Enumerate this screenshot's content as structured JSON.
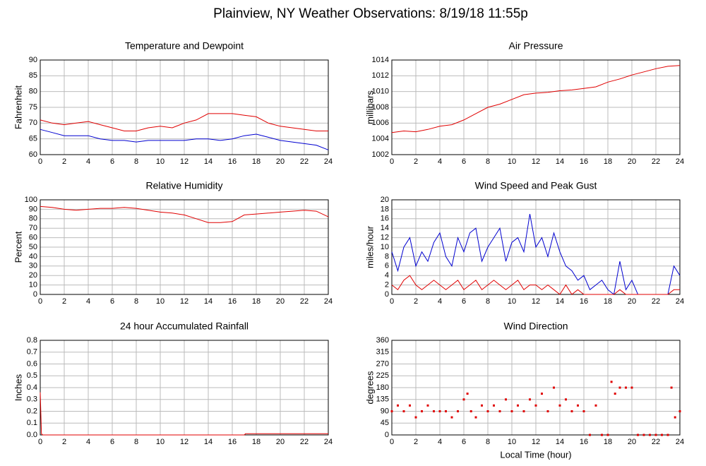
{
  "title": "Plainview, NY Weather Observations: 8/19/18 11:55p",
  "chart_data": [
    {
      "type": "line",
      "title": "Temperature and Dewpoint",
      "ylabel": "Fahrenheit",
      "x": [
        0,
        1,
        2,
        3,
        4,
        5,
        6,
        7,
        8,
        9,
        10,
        11,
        12,
        13,
        14,
        15,
        16,
        17,
        18,
        19,
        20,
        21,
        22,
        23,
        24
      ],
      "series": [
        {
          "color": "#e00000",
          "values": [
            71,
            70,
            69.5,
            70,
            70.5,
            69.5,
            68.5,
            67.5,
            67.5,
            68.5,
            69,
            68.5,
            70,
            71,
            73,
            73,
            73,
            72.5,
            72,
            70,
            69,
            68.5,
            68,
            67.5,
            67.5
          ]
        },
        {
          "color": "#0000d0",
          "values": [
            68,
            67,
            66,
            66,
            66,
            65,
            64.5,
            64.5,
            64,
            64.5,
            64.5,
            64.5,
            64.5,
            65,
            65,
            64.5,
            65,
            66,
            66.5,
            65.5,
            64.5,
            64,
            63.5,
            63,
            61.5
          ]
        }
      ],
      "xlim": [
        0,
        24
      ],
      "xticks": [
        0,
        2,
        4,
        6,
        8,
        10,
        12,
        14,
        16,
        18,
        20,
        22,
        24
      ],
      "ylim": [
        60,
        90
      ],
      "yticks": [
        60,
        65,
        70,
        75,
        80,
        85,
        90
      ],
      "grid": true
    },
    {
      "type": "line",
      "title": "Air Pressure",
      "ylabel": "millibars",
      "x": [
        0,
        1,
        2,
        3,
        4,
        5,
        6,
        7,
        8,
        9,
        10,
        11,
        12,
        13,
        14,
        15,
        16,
        17,
        18,
        19,
        20,
        21,
        22,
        23,
        24
      ],
      "series": [
        {
          "color": "#e00000",
          "values": [
            1004.8,
            1005,
            1004.9,
            1005.2,
            1005.6,
            1005.8,
            1006.4,
            1007.2,
            1008,
            1008.4,
            1009,
            1009.6,
            1009.8,
            1009.9,
            1010.1,
            1010.2,
            1010.4,
            1010.6,
            1011.2,
            1011.6,
            1012.1,
            1012.5,
            1012.9,
            1013.2,
            1013.3
          ]
        }
      ],
      "xlim": [
        0,
        24
      ],
      "xticks": [
        0,
        2,
        4,
        6,
        8,
        10,
        12,
        14,
        16,
        18,
        20,
        22,
        24
      ],
      "ylim": [
        1002,
        1014
      ],
      "yticks": [
        1002,
        1004,
        1006,
        1008,
        1010,
        1012,
        1014
      ],
      "grid": true
    },
    {
      "type": "line",
      "title": "Relative Humidity",
      "ylabel": "Percent",
      "x": [
        0,
        1,
        2,
        3,
        4,
        5,
        6,
        7,
        8,
        9,
        10,
        11,
        12,
        13,
        14,
        15,
        16,
        17,
        18,
        19,
        20,
        21,
        22,
        23,
        24
      ],
      "series": [
        {
          "color": "#e00000",
          "values": [
            93,
            92,
            90,
            89,
            90,
            91,
            91,
            92,
            91,
            89,
            87,
            86,
            84,
            80,
            76,
            76,
            77,
            84,
            85,
            86,
            87,
            88,
            89,
            88,
            82
          ]
        }
      ],
      "xlim": [
        0,
        24
      ],
      "xticks": [
        0,
        2,
        4,
        6,
        8,
        10,
        12,
        14,
        16,
        18,
        20,
        22,
        24
      ],
      "ylim": [
        0,
        100
      ],
      "yticks": [
        0,
        10,
        20,
        30,
        40,
        50,
        60,
        70,
        80,
        90,
        100
      ],
      "grid": true
    },
    {
      "type": "line",
      "title": "Wind Speed and Peak Gust",
      "ylabel": "miles/hour",
      "x": [
        0,
        0.5,
        1,
        1.5,
        2,
        2.5,
        3,
        3.5,
        4,
        4.5,
        5,
        5.5,
        6,
        6.5,
        7,
        7.5,
        8,
        8.5,
        9,
        9.5,
        10,
        10.5,
        11,
        11.5,
        12,
        12.5,
        13,
        13.5,
        14,
        14.5,
        15,
        15.5,
        16,
        16.5,
        17,
        17.5,
        18,
        18.5,
        19,
        19.5,
        20,
        20.5,
        21,
        21.5,
        22,
        22.5,
        23,
        23.5,
        24
      ],
      "series": [
        {
          "color": "#0000d0",
          "values": [
            9,
            5,
            10,
            12,
            6,
            9,
            7,
            11,
            13,
            8,
            6,
            12,
            9,
            13,
            14,
            7,
            10,
            12,
            14,
            7,
            11,
            12,
            9,
            17,
            10,
            12,
            8,
            13,
            9,
            6,
            5,
            3,
            4,
            1,
            2,
            3,
            1,
            0,
            7,
            1,
            3,
            0,
            0,
            0,
            0,
            0,
            0,
            6,
            4
          ]
        },
        {
          "color": "#e00000",
          "values": [
            2,
            1,
            3,
            4,
            2,
            1,
            2,
            3,
            2,
            1,
            2,
            3,
            1,
            2,
            3,
            1,
            2,
            3,
            2,
            1,
            2,
            3,
            1,
            2,
            2,
            1,
            2,
            1,
            0,
            2,
            0,
            1,
            0,
            0,
            0,
            0,
            0,
            0,
            1,
            0,
            0,
            0,
            0,
            0,
            0,
            0,
            0,
            1,
            1
          ]
        }
      ],
      "xlim": [
        0,
        24
      ],
      "xticks": [
        0,
        2,
        4,
        6,
        8,
        10,
        12,
        14,
        16,
        18,
        20,
        22,
        24
      ],
      "ylim": [
        0,
        20
      ],
      "yticks": [
        0,
        2,
        4,
        6,
        8,
        10,
        12,
        14,
        16,
        18,
        20
      ],
      "grid": true
    },
    {
      "type": "line",
      "title": "24 hour Accumulated Rainfall",
      "ylabel": "Inches",
      "x": [
        0,
        0.1,
        0.2,
        17,
        17.1,
        24
      ],
      "series": [
        {
          "color": "#e00000",
          "values": [
            0.36,
            0.01,
            0,
            0,
            0.01,
            0.01
          ]
        }
      ],
      "xlim": [
        0,
        24
      ],
      "xticks": [
        0,
        2,
        4,
        6,
        8,
        10,
        12,
        14,
        16,
        18,
        20,
        22,
        24
      ],
      "ylim": [
        0,
        0.8
      ],
      "yticks": [
        {
          "value": 0,
          "label": "0.0"
        },
        0.1,
        0.2,
        0.3,
        0.4,
        0.5,
        0.6,
        0.7,
        0.8
      ],
      "grid": true
    },
    {
      "type": "scatter",
      "title": "Wind Direction",
      "ylabel": "degrees",
      "xlabel": "Local Time (hour)",
      "x": [
        0,
        0.5,
        1,
        1.5,
        2,
        2.5,
        3,
        3.5,
        4,
        4.5,
        5,
        5.5,
        6,
        6.3,
        6.6,
        7,
        7.5,
        8,
        8.5,
        9,
        9.5,
        10,
        10.5,
        11,
        11.5,
        12,
        12.5,
        13,
        13.5,
        14,
        14.5,
        15,
        15.5,
        16,
        16.5,
        17,
        17.5,
        18,
        18.3,
        18.6,
        19,
        19.5,
        20,
        20.5,
        21,
        21.5,
        22,
        22.5,
        23,
        23.3,
        23.6,
        24
      ],
      "series": [
        {
          "color": "#e00000",
          "values": [
            90,
            112,
            90,
            112,
            67,
            90,
            112,
            90,
            90,
            90,
            67,
            90,
            135,
            157,
            90,
            67,
            112,
            90,
            112,
            90,
            135,
            90,
            112,
            90,
            135,
            112,
            157,
            90,
            180,
            112,
            135,
            90,
            112,
            90,
            0,
            112,
            0,
            0,
            202,
            157,
            180,
            180,
            180,
            0,
            0,
            0,
            0,
            0,
            0,
            180,
            67,
            90
          ]
        }
      ],
      "xlim": [
        0,
        24
      ],
      "xticks": [
        0,
        2,
        4,
        6,
        8,
        10,
        12,
        14,
        16,
        18,
        20,
        22,
        24
      ],
      "ylim": [
        0,
        360
      ],
      "yticks": [
        0,
        45,
        90,
        135,
        180,
        225,
        270,
        315,
        360
      ],
      "grid": true
    }
  ]
}
